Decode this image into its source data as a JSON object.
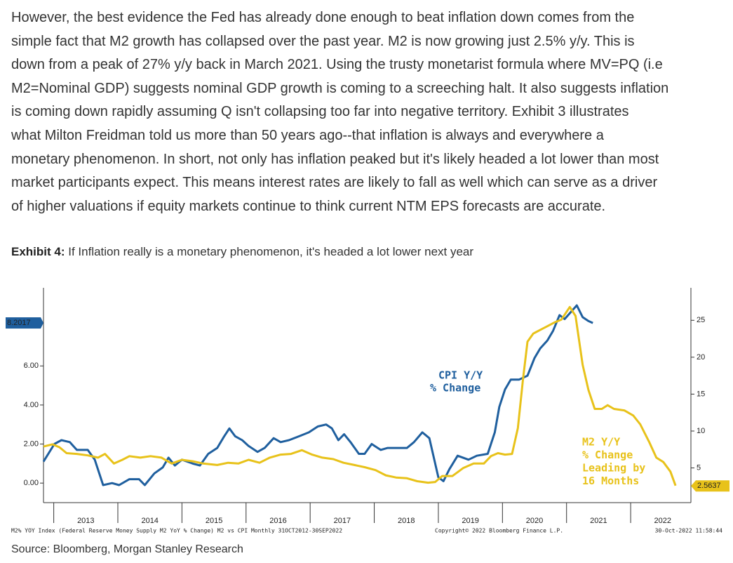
{
  "paragraph": [
    "However, the best evidence the Fed has already done enough to beat inflation down comes from the",
    "simple fact that M2 growth has collapsed over the past year. M2 is now growing just 2.5% y/y. This is",
    "down from a peak of 27% y/y back in March 2021. Using the trusty monetarist formula where MV=PQ (i.e",
    "M2=Nominal GDP) suggests nominal GDP growth is coming to a screeching halt. It also suggests inflation",
    "is coming down rapidly assuming Q isn't collapsing too far into negative territory. Exhibit 3 illustrates",
    "what Milton Freidman told us more than 50 years ago--that inflation is always and everywhere a",
    "monetary phenomenon. In short, not only has inflation peaked but it's likely headed a lot lower than most",
    "market participants expect. This means interest rates are likely to fall as well which can serve as a driver",
    "of higher valuations if equity markets continue to think current NTM EPS forecasts are accurate."
  ],
  "exhibit": {
    "label": "Exhibit 4:",
    "title": "If Inflation really is a monetary phenomenon, it's headed a lot lower next year"
  },
  "source": "Source: Bloomberg, Morgan Stanley Research",
  "chart_data": {
    "type": "line",
    "xlim": [
      2012.84,
      2022.94
    ],
    "xticks": [
      2013,
      2014,
      2015,
      2016,
      2017,
      2018,
      2019,
      2020,
      2021,
      2022
    ],
    "ylim": [
      -1.0,
      10.0
    ],
    "yticks": [
      {
        "value": 0,
        "label": "0.00"
      },
      {
        "value": 2,
        "label": "2.00"
      },
      {
        "value": 4,
        "label": "4.00"
      },
      {
        "value": 6,
        "label": "6.00"
      }
    ],
    "y2lim": [
      0.3,
      29.4
    ],
    "y2ticks": [
      5,
      10,
      15,
      20,
      25
    ],
    "series": [
      {
        "name": [
          "CPI Y/Y",
          "% Change"
        ],
        "color": "#1f5f9e",
        "axis": "y",
        "last_value": 8.2017,
        "x": [
          2012.84,
          2013.01,
          2013.12,
          2013.25,
          2013.36,
          2013.53,
          2013.64,
          2013.77,
          2013.91,
          2014.02,
          2014.18,
          2014.33,
          2014.42,
          2014.57,
          2014.7,
          2014.79,
          2014.89,
          2015.0,
          2015.17,
          2015.28,
          2015.41,
          2015.55,
          2015.66,
          2015.74,
          2015.83,
          2015.94,
          2016.04,
          2016.18,
          2016.29,
          2016.43,
          2016.54,
          2016.67,
          2016.83,
          2016.98,
          2017.12,
          2017.25,
          2017.34,
          2017.44,
          2017.53,
          2017.63,
          2017.76,
          2017.85,
          2017.96,
          2018.1,
          2018.21,
          2018.34,
          2018.51,
          2018.62,
          2018.75,
          2018.86,
          2019.0,
          2019.08,
          2019.17,
          2019.3,
          2019.47,
          2019.6,
          2019.77,
          2019.88,
          2019.95,
          2020.04,
          2020.13,
          2020.26,
          2020.39,
          2020.5,
          2020.59,
          2020.7,
          2020.79,
          2020.89,
          2020.97,
          2021.05,
          2021.16,
          2021.25,
          2021.34,
          2021.41
        ],
        "values": [
          1.1,
          2.0,
          2.2,
          2.1,
          1.7,
          1.7,
          1.2,
          -0.1,
          0.0,
          -0.1,
          0.2,
          0.2,
          -0.1,
          0.5,
          0.8,
          1.3,
          0.9,
          1.2,
          1.0,
          0.9,
          1.5,
          1.8,
          2.4,
          2.8,
          2.4,
          2.2,
          1.9,
          1.6,
          1.8,
          2.3,
          2.1,
          2.2,
          2.4,
          2.6,
          2.9,
          3.0,
          2.8,
          2.2,
          2.5,
          2.1,
          1.5,
          1.5,
          2.0,
          1.7,
          1.8,
          1.8,
          1.8,
          2.1,
          2.6,
          2.3,
          0.3,
          0.1,
          0.7,
          1.4,
          1.2,
          1.4,
          1.5,
          2.6,
          3.9,
          4.8,
          5.3,
          5.3,
          5.5,
          6.4,
          6.9,
          7.3,
          7.8,
          8.6,
          8.4,
          8.7,
          9.1,
          8.5,
          8.3,
          8.2
        ]
      },
      {
        "name": [
          "M2 Y/Y",
          "% Change",
          "Leading by",
          "16 Months"
        ],
        "color": "#e8c21a",
        "axis": "y2",
        "last_value": 2.5637,
        "x": [
          2012.84,
          2012.98,
          2013.09,
          2013.2,
          2013.36,
          2013.53,
          2013.69,
          2013.8,
          2013.94,
          2014.07,
          2014.18,
          2014.35,
          2014.51,
          2014.68,
          2014.84,
          2015.0,
          2015.17,
          2015.33,
          2015.55,
          2015.72,
          2015.88,
          2016.04,
          2016.21,
          2016.37,
          2016.54,
          2016.7,
          2016.87,
          2017.03,
          2017.19,
          2017.36,
          2017.52,
          2017.69,
          2017.85,
          2018.02,
          2018.18,
          2018.34,
          2018.51,
          2018.67,
          2018.84,
          2018.95,
          2019.06,
          2019.22,
          2019.39,
          2019.55,
          2019.71,
          2019.82,
          2019.93,
          2020.04,
          2020.15,
          2020.24,
          2020.32,
          2020.39,
          2020.48,
          2020.59,
          2020.7,
          2020.81,
          2020.92,
          2021.05,
          2021.14,
          2021.25,
          2021.34,
          2021.44,
          2021.55,
          2021.64,
          2021.74,
          2021.9,
          2022.04,
          2022.15,
          2022.29,
          2022.4,
          2022.51,
          2022.62,
          2022.7
        ],
        "values": [
          7.9,
          8.2,
          7.8,
          7.0,
          6.9,
          6.7,
          6.4,
          6.9,
          5.6,
          6.1,
          6.6,
          6.4,
          6.6,
          6.4,
          5.6,
          6.1,
          5.9,
          5.6,
          5.4,
          5.7,
          5.6,
          6.1,
          5.7,
          6.4,
          6.8,
          6.9,
          7.4,
          6.8,
          6.4,
          6.2,
          5.7,
          5.4,
          5.1,
          4.7,
          4.0,
          3.7,
          3.6,
          3.2,
          3.0,
          3.1,
          3.9,
          3.9,
          5.0,
          5.6,
          5.6,
          6.6,
          7.0,
          6.8,
          6.9,
          10.4,
          17.0,
          22.1,
          23.2,
          23.7,
          24.2,
          24.7,
          25.1,
          26.8,
          25.6,
          19.0,
          15.6,
          13.0,
          13.0,
          13.5,
          13.0,
          12.8,
          12.1,
          10.9,
          8.5,
          6.4,
          5.8,
          4.5,
          2.6
        ]
      }
    ],
    "footnote": "M2% YOY Index (Federal Reserve Money Supply M2 YoY % Change) M2 vs CPI  Monthly 31OCT2012-30SEP2022",
    "copyright": "Copyright© 2022 Bloomberg Finance L.P.",
    "timestamp": "30-Oct-2022 11:58:44"
  }
}
